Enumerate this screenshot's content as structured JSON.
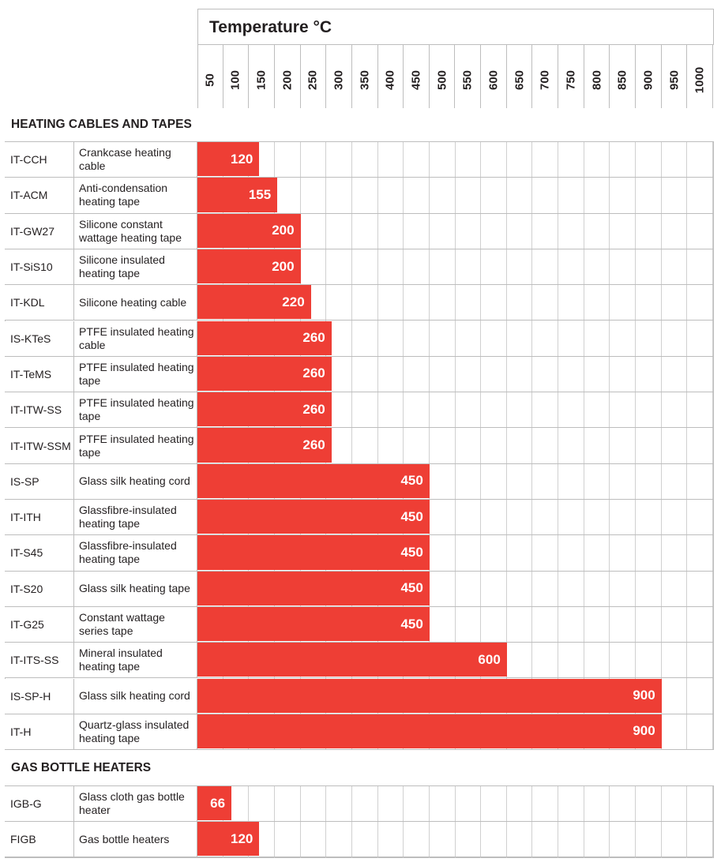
{
  "chart_data": {
    "type": "bar",
    "orientation": "horizontal",
    "title": "Temperature °C",
    "xlabel": "Temperature °C",
    "xlim": [
      0,
      1000
    ],
    "ticks": [
      "50",
      "100",
      "150",
      "200",
      "250",
      "300",
      "350",
      "400",
      "450",
      "500",
      "550",
      "600",
      "650",
      "700",
      "750",
      "800",
      "850",
      "900",
      "950",
      "1000"
    ],
    "grid": true,
    "bar_color": "#ee3e35",
    "sections": [
      {
        "title": "HEATING CABLES AND TAPES",
        "rows": [
          {
            "code": "IT-CCH",
            "desc": "Crankcase heating cable",
            "value": 120
          },
          {
            "code": "IT-ACM",
            "desc": "Anti-condensation heating tape",
            "value": 155
          },
          {
            "code": "IT-GW27",
            "desc": "Silicone constant wattage heating tape",
            "value": 200
          },
          {
            "code": "IT-SiS10",
            "desc": "Silicone insulated heating tape",
            "value": 200
          },
          {
            "code": "IT-KDL",
            "desc": "Silicone heating cable",
            "value": 220
          },
          {
            "code": "IS-KTeS",
            "desc": "PTFE insulated heating cable",
            "value": 260
          },
          {
            "code": "IT-TeMS",
            "desc": "PTFE insulated heating tape",
            "value": 260
          },
          {
            "code": "IT-ITW-SS",
            "desc": "PTFE insulated heating tape",
            "value": 260
          },
          {
            "code": "IT-ITW-SSM",
            "desc": "PTFE insulated heating tape",
            "value": 260
          },
          {
            "code": "IS-SP",
            "desc": "Glass silk heating cord",
            "value": 450
          },
          {
            "code": "IT-ITH",
            "desc": "Glassfibre-insulated heating tape",
            "value": 450
          },
          {
            "code": "IT-S45",
            "desc": "Glassfibre-insulated heating tape",
            "value": 450
          },
          {
            "code": "IT-S20",
            "desc": "Glass silk heating tape",
            "value": 450
          },
          {
            "code": "IT-G25",
            "desc": "Constant wattage series tape",
            "value": 450
          },
          {
            "code": "IT-ITS-SS",
            "desc": "Mineral insulated heating tape",
            "value": 600
          },
          {
            "code": "IS-SP-H",
            "desc": "Glass silk heating cord",
            "value": 900
          },
          {
            "code": "IT-H",
            "desc": "Quartz-glass insulated heating tape",
            "value": 900
          }
        ]
      },
      {
        "title": "GAS BOTTLE HEATERS",
        "rows": [
          {
            "code": "IGB-G",
            "desc": "Glass cloth gas bottle heater",
            "value": 66
          },
          {
            "code": "FIGB",
            "desc": "Gas bottle heaters",
            "value": 120
          }
        ]
      }
    ]
  }
}
